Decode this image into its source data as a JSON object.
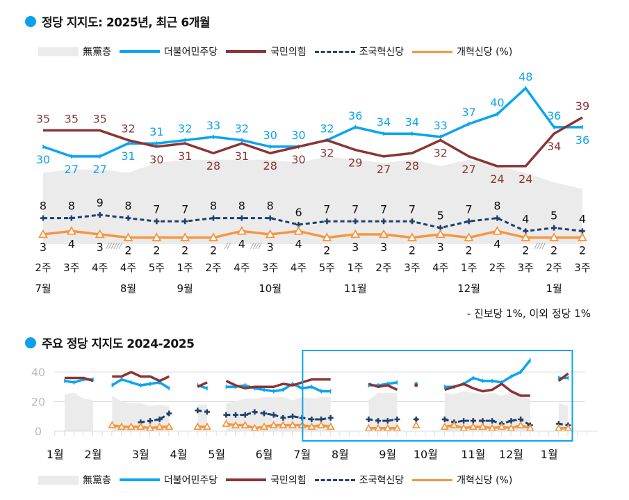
{
  "colors": {
    "gray": "#ebebeb",
    "blue": "#0aa5f0",
    "red": "#8b3434",
    "navy": "#1f3f6e",
    "orange": "#f7963f",
    "accent": "#0aa0ec"
  },
  "top": {
    "title": "정당 지지도: 2025년, 최근 6개월",
    "note": "- 진보당 1%, 이외 정당 1%",
    "legend": [
      "無黨층",
      "더불어민주당",
      "국민의힘",
      "조국혁신당",
      "개혁신당 (%)"
    ]
  },
  "bottom": {
    "title": "주요 정당 지지도 2024-2025",
    "legend": [
      "無黨층",
      "더불어민주당",
      "국민의힘",
      "조국혁신당",
      "개혁신당 (%)"
    ]
  },
  "chart_data": [
    {
      "type": "line",
      "title": "정당 지지도: 2025년, 최근 6개월",
      "categories": [
        "2주",
        "3주",
        "4주",
        "4주",
        "5주",
        "1주",
        "2주",
        "4주",
        "3주",
        "4주",
        "5주",
        "1주",
        "2주",
        "3주",
        "4주",
        "1주",
        "2주",
        "3주",
        "2주",
        "3주"
      ],
      "month_labels": [
        {
          "index": 0,
          "label": "7월"
        },
        {
          "index": 3,
          "label": "8월"
        },
        {
          "index": 5,
          "label": "9월"
        },
        {
          "index": 8,
          "label": "10월"
        },
        {
          "index": 11,
          "label": "11월"
        },
        {
          "index": 15,
          "label": "12월"
        },
        {
          "index": 18,
          "label": "1월"
        }
      ],
      "breaks": [
        {
          "after": 2,
          "mark": "//////"
        },
        {
          "after": 6,
          "mark": "//"
        },
        {
          "after": 7,
          "mark": "////"
        },
        {
          "after": 17,
          "mark": "////"
        }
      ],
      "ylim": [
        0,
        60
      ],
      "series": [
        {
          "name": "無黨층",
          "kind": "area",
          "values": [
            22,
            23,
            23,
            22,
            25,
            26,
            26,
            26,
            26,
            25,
            27,
            26,
            25,
            26,
            24,
            26,
            24,
            22,
            19,
            17
          ]
        },
        {
          "name": "더불어민주당",
          "values": [
            30,
            27,
            27,
            31,
            31,
            32,
            33,
            32,
            30,
            30,
            32,
            36,
            34,
            34,
            33,
            37,
            40,
            48,
            36,
            36
          ]
        },
        {
          "name": "국민의힘",
          "values": [
            35,
            35,
            35,
            32,
            30,
            31,
            28,
            31,
            28,
            30,
            32,
            29,
            27,
            28,
            32,
            27,
            24,
            24,
            34,
            39
          ]
        },
        {
          "name": "조국혁신당",
          "values": [
            8,
            8,
            9,
            8,
            7,
            7,
            8,
            8,
            8,
            6,
            7,
            7,
            7,
            7,
            5,
            7,
            8,
            4,
            5,
            4
          ]
        },
        {
          "name": "개혁신당 (%)",
          "values": [
            3,
            4,
            3,
            2,
            2,
            2,
            2,
            4,
            3,
            4,
            2,
            3,
            3,
            2,
            3,
            2,
            4,
            2,
            2,
            2
          ]
        }
      ]
    },
    {
      "type": "line",
      "title": "주요 정당 지지도 2024-2025",
      "yticks": [
        0,
        20,
        40
      ],
      "ylim": [
        0,
        50
      ],
      "month_labels": [
        {
          "slot": 0,
          "label": "1월"
        },
        {
          "slot": 4,
          "label": "2월"
        },
        {
          "slot": 9,
          "label": "3월"
        },
        {
          "slot": 13,
          "label": "4월"
        },
        {
          "slot": 17,
          "label": "5월"
        },
        {
          "slot": 22,
          "label": "6월"
        },
        {
          "slot": 26,
          "label": "7월"
        },
        {
          "slot": 30,
          "label": "8월"
        },
        {
          "slot": 35,
          "label": "9월"
        },
        {
          "slot": 39,
          "label": "10월"
        },
        {
          "slot": 44,
          "label": "11월"
        },
        {
          "slot": 48,
          "label": "12월"
        },
        {
          "slot": 52,
          "label": "1월"
        }
      ],
      "highlight_range": [
        27,
        54
      ],
      "series": [
        {
          "name": "無黨층",
          "kind": "area",
          "values": [
            null,
            25,
            26,
            22,
            21,
            null,
            24,
            20,
            19,
            19,
            17,
            18,
            17,
            null,
            null,
            18,
            18,
            null,
            19,
            20,
            22,
            22,
            23,
            23,
            23,
            21,
            23,
            22,
            23,
            23,
            null,
            null,
            null,
            21,
            26,
            26,
            26,
            null,
            null,
            null,
            null,
            26,
            25,
            27,
            26,
            25,
            26,
            24,
            26,
            24,
            22,
            null,
            null,
            19,
            17
          ]
        },
        {
          "name": "더불어민주당",
          "values": [
            null,
            34,
            33,
            35,
            35,
            null,
            31,
            35,
            33,
            31,
            32,
            33,
            29,
            null,
            null,
            31,
            29,
            null,
            30,
            30,
            31,
            29,
            28,
            27,
            28,
            32,
            29,
            30,
            27,
            27,
            null,
            null,
            null,
            31,
            31,
            32,
            33,
            null,
            32,
            null,
            null,
            30,
            30,
            32,
            36,
            34,
            34,
            33,
            37,
            40,
            48,
            null,
            null,
            36,
            36
          ]
        },
        {
          "name": "국민의힘",
          "values": [
            null,
            36,
            36,
            36,
            34,
            null,
            37,
            37,
            40,
            37,
            37,
            34,
            37,
            null,
            null,
            30,
            33,
            null,
            34,
            31,
            29,
            30,
            30,
            30,
            32,
            31,
            33,
            35,
            35,
            35,
            null,
            null,
            null,
            32,
            30,
            31,
            28,
            null,
            31,
            null,
            null,
            28,
            30,
            32,
            29,
            27,
            28,
            32,
            27,
            24,
            24,
            null,
            null,
            34,
            39
          ]
        },
        {
          "name": "조국혁신당",
          "values": [
            null,
            null,
            null,
            null,
            null,
            null,
            null,
            null,
            null,
            6,
            7,
            8,
            12,
            null,
            null,
            14,
            13,
            null,
            11,
            11,
            11,
            13,
            12,
            11,
            9,
            10,
            9,
            8,
            8,
            9,
            null,
            null,
            null,
            8,
            7,
            7,
            8,
            null,
            8,
            null,
            null,
            8,
            6,
            7,
            7,
            7,
            7,
            5,
            7,
            8,
            4,
            null,
            null,
            5,
            4
          ]
        },
        {
          "name": "개혁신당 (%)",
          "values": [
            null,
            null,
            null,
            null,
            null,
            null,
            4,
            3,
            3,
            3,
            2,
            3,
            3,
            null,
            null,
            3,
            3,
            null,
            5,
            4,
            4,
            2,
            3,
            4,
            4,
            4,
            4,
            3,
            4,
            3,
            null,
            null,
            null,
            2,
            2,
            2,
            2,
            null,
            4,
            null,
            null,
            3,
            4,
            2,
            3,
            3,
            2,
            3,
            2,
            4,
            2,
            null,
            null,
            2,
            2
          ]
        }
      ]
    }
  ]
}
